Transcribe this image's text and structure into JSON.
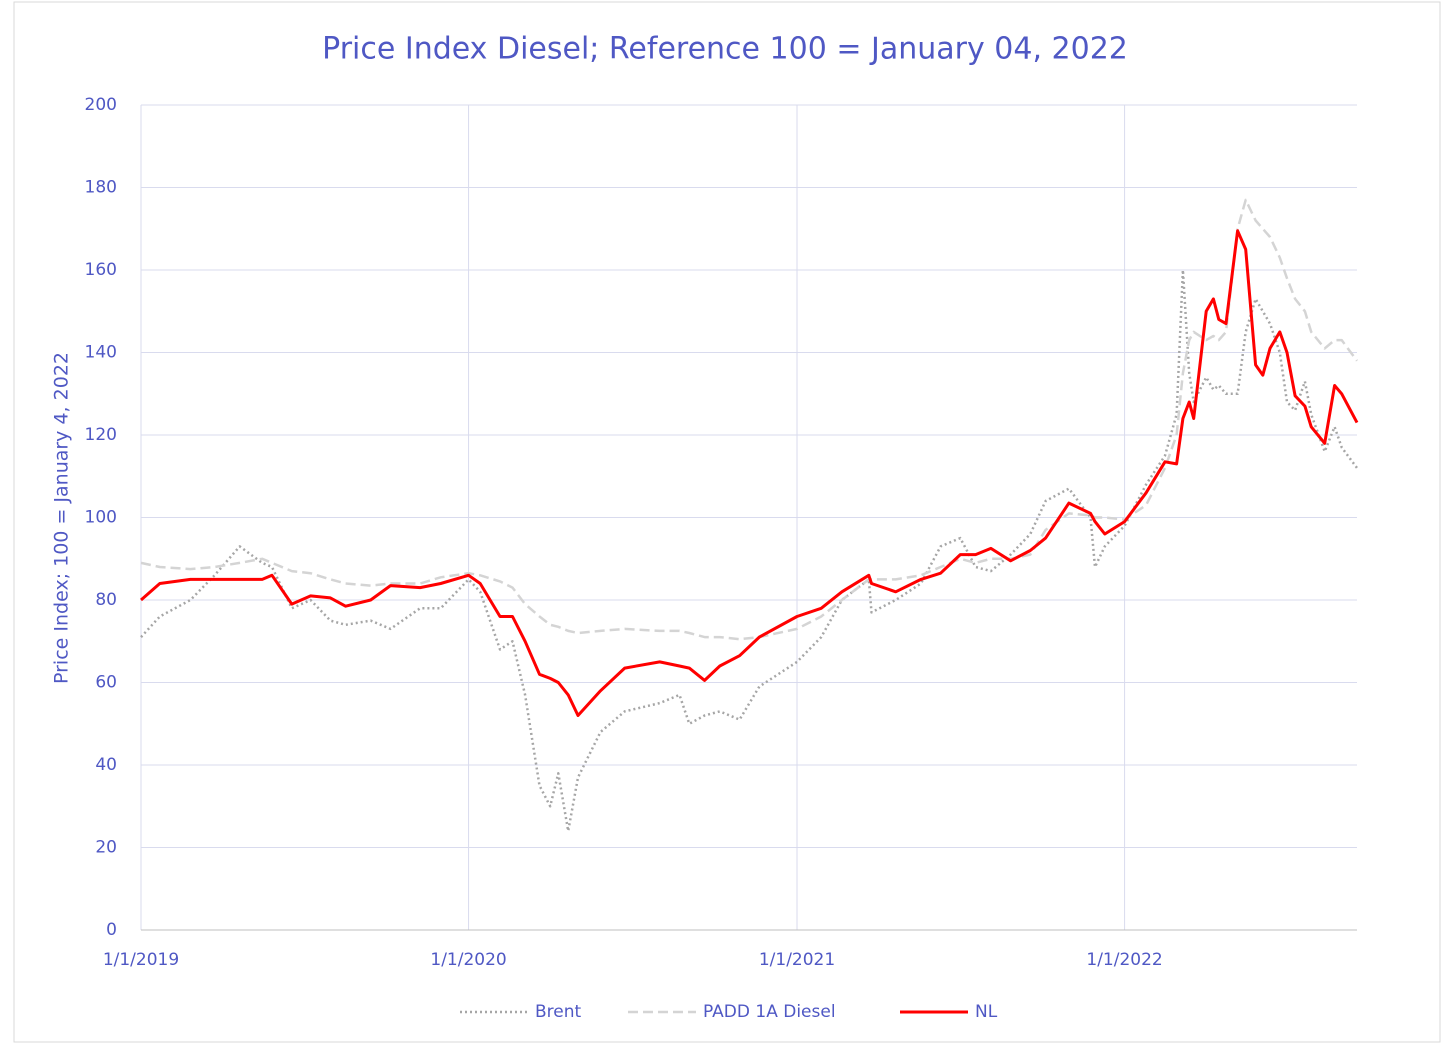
{
  "chart_data": {
    "type": "line",
    "title": "Price Index Diesel; Reference 100 = January 04, 2022",
    "y_label": "Price Index; 100 = January 4, 2022",
    "x": [
      "1/1/2019",
      "1/22/2019",
      "2/25/2019",
      "3/24/2019",
      "4/21/2019",
      "5/16/2019",
      "5/27/2019",
      "6/18/2019",
      "7/9/2019",
      "7/31/2019",
      "8/17/2019",
      "9/14/2019",
      "10/6/2019",
      "11/8/2019",
      "12/1/2019",
      "1/1/2020",
      "1/14/2020",
      "2/5/2020",
      "2/19/2020",
      "3/4/2020",
      "3/20/2020",
      "4/1/2020",
      "4/10/2020",
      "4/21/2020",
      "5/2/2020",
      "5/27/2020",
      "6/23/2020",
      "8/1/2020",
      "8/23/2020",
      "9/3/2020",
      "9/20/2020",
      "10/7/2020",
      "10/29/2020",
      "11/20/2020",
      "1/1/2021",
      "1/28/2021",
      "2/20/2021",
      "3/22/2021",
      "3/25/2021",
      "4/21/2021",
      "5/19/2021",
      "6/10/2021",
      "7/2/2021",
      "7/19/2021",
      "8/5/2021",
      "8/27/2021",
      "9/18/2021",
      "10/5/2021",
      "10/31/2021",
      "11/24/2021",
      "11/29/2021",
      "12/10/2021",
      "1/1/2022",
      "1/25/2022",
      "2/15/2022",
      "2/28/2022",
      "3/7/2022",
      "3/14/2022",
      "3/19/2022",
      "4/2/2022",
      "4/10/2022",
      "4/16/2022",
      "4/24/2022",
      "5/7/2022",
      "5/16/2022",
      "5/27/2022",
      "6/4/2022",
      "6/12/2022",
      "6/23/2022",
      "7/1/2022",
      "7/10/2022",
      "7/21/2022",
      "7/28/2022",
      "8/12/2022",
      "8/23/2022",
      "8/31/2022",
      "9/17/2022"
    ],
    "series": [
      {
        "name": "Brent",
        "color": "#a6a6a6",
        "style": "dotted",
        "values": [
          71,
          76,
          80,
          86,
          93,
          89,
          88,
          78,
          80,
          75,
          74,
          75,
          73,
          78,
          78,
          85,
          82,
          68,
          70,
          57,
          35,
          30,
          38,
          24,
          37,
          48,
          53,
          55,
          57,
          50,
          52,
          53,
          51,
          59,
          65,
          71,
          80,
          85,
          77,
          80,
          84,
          93,
          95,
          88,
          87,
          91,
          96,
          104,
          107,
          100,
          88,
          93,
          98,
          108,
          115,
          125,
          160,
          135,
          128,
          134,
          131,
          132,
          130,
          130,
          145,
          153,
          150,
          147,
          140,
          128,
          126,
          133,
          125,
          116,
          122,
          117,
          112
        ]
      },
      {
        "name": "PADD 1A Diesel",
        "color": "#d4d4d4",
        "style": "dashed",
        "values": [
          89,
          88,
          87.5,
          88,
          89,
          90,
          89,
          87,
          86.5,
          85,
          84,
          83.5,
          84,
          84,
          85.5,
          86.5,
          86,
          84.5,
          83,
          79,
          76,
          74,
          73.5,
          72.5,
          72,
          72.5,
          73,
          72.5,
          72.5,
          72,
          71,
          71,
          70.5,
          71,
          73,
          76,
          80,
          85,
          85,
          85,
          86,
          88,
          90,
          89,
          90,
          90,
          91,
          97,
          101,
          100.5,
          100,
          100,
          99.5,
          103,
          112,
          120,
          135,
          143,
          145,
          143,
          144,
          143,
          145,
          170,
          177,
          172,
          170,
          168,
          163,
          158,
          153,
          150,
          145,
          141,
          143,
          143,
          138
        ]
      },
      {
        "name": "NL",
        "color": "#ff0000",
        "style": "solid",
        "values": [
          80,
          84,
          85,
          85,
          85,
          85,
          86,
          79,
          81,
          80.5,
          78.5,
          80,
          83.5,
          83,
          84,
          86,
          84,
          76,
          76,
          70,
          62,
          61,
          60,
          57,
          52,
          58,
          63.5,
          65,
          64,
          63.5,
          60.5,
          64,
          66.5,
          71,
          76,
          78,
          82,
          86,
          84,
          82,
          85,
          86.5,
          91,
          91,
          92.5,
          89.5,
          92,
          95,
          103.5,
          101,
          99,
          96,
          99,
          106,
          113.5,
          113,
          124,
          128,
          124,
          150,
          153,
          148,
          147,
          169.5,
          165,
          137,
          134.5,
          141,
          145,
          140,
          129.5,
          127,
          122,
          118,
          132,
          130,
          123
        ]
      }
    ],
    "xlim": [
      "1/1/2019",
      "9/17/2022"
    ],
    "xticks": [
      "1/1/2019",
      "1/1/2020",
      "1/1/2021",
      "1/1/2022"
    ],
    "ylim": [
      0,
      200
    ],
    "yticks": [
      0,
      20,
      40,
      60,
      80,
      100,
      120,
      140,
      160,
      180,
      200
    ],
    "grid": true,
    "legend": "bottom"
  }
}
